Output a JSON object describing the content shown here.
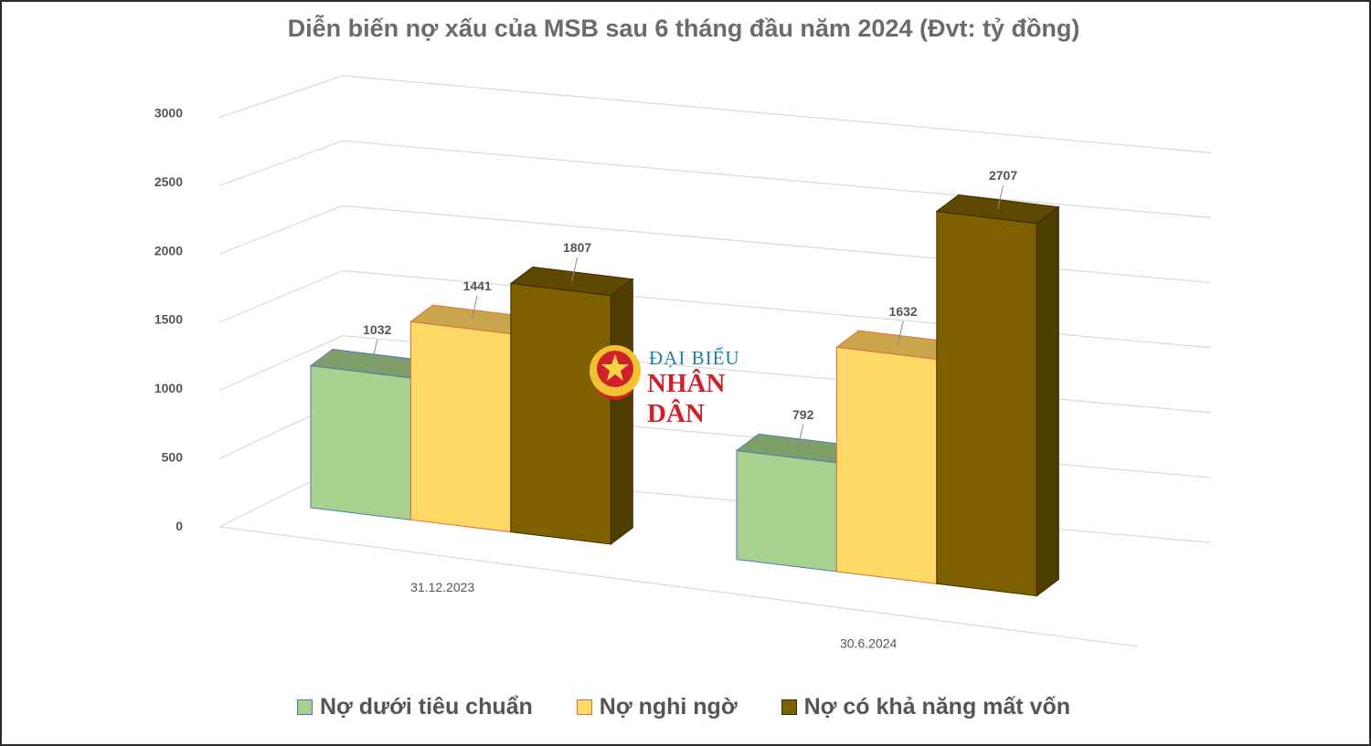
{
  "chart_data": {
    "type": "bar",
    "title": "Diễn biến nợ xấu của MSB sau 6 tháng đầu năm 2024 (Đvt: tỷ đồng)",
    "categories": [
      "31.12.2023",
      "30.6.2024"
    ],
    "series": [
      {
        "name": "Nợ dưới tiêu chuẩn",
        "values": [
          1032,
          792
        ],
        "color": "#a9d18e"
      },
      {
        "name": "Nợ nghi ngờ",
        "values": [
          1441,
          1632
        ],
        "color": "#ffd966"
      },
      {
        "name": "Nợ có khả năng mất vốn",
        "values": [
          1807,
          2707
        ],
        "color": "#7f6000"
      }
    ],
    "yticks": [
      "0",
      "500",
      "1000",
      "1500",
      "2000",
      "2500",
      "3000"
    ],
    "ylim": [
      0,
      3000
    ],
    "grid": true,
    "legend_position": "bottom"
  },
  "watermark": {
    "line1": "ĐẠI BIỂU",
    "line2": "NHÂN DÂN"
  }
}
